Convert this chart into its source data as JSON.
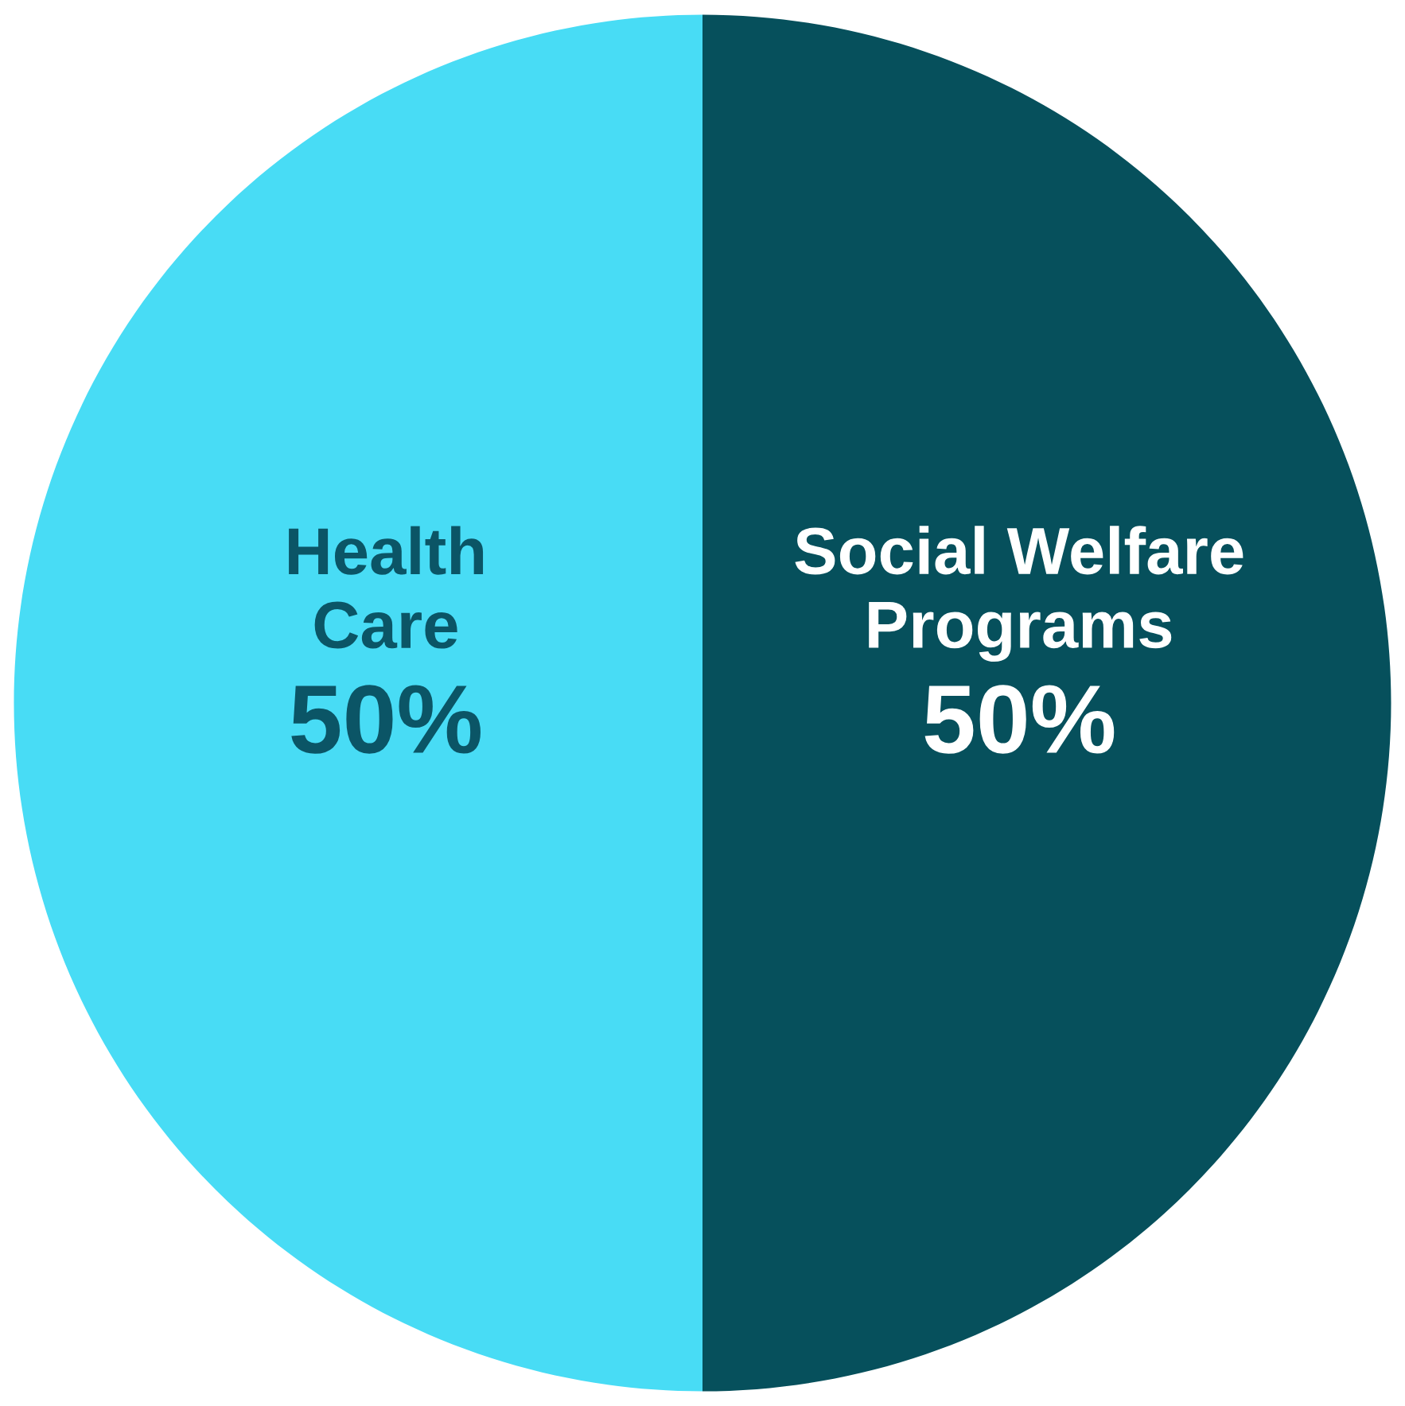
{
  "chart_data": {
    "type": "pie",
    "categories": [
      "Social Welfare\nPrograms",
      "Health\nCare"
    ],
    "values": [
      50,
      50
    ],
    "colors": [
      "#06505c",
      "#48dcf5"
    ],
    "value_labels": [
      "50%",
      "50%"
    ]
  }
}
